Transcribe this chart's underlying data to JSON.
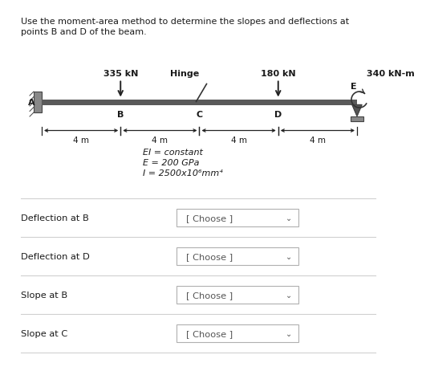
{
  "title_line1": "Use the moment-area method to determine the slopes and deflections at",
  "title_line2": "points B and D of the beam.",
  "force1_label": "335 kN",
  "force2_label": "180 kN",
  "moment_label": "340 kN-m",
  "hinge_label": "Hinge",
  "ei_line1": "EI = constant",
  "ei_line2": "E = 200 GPa",
  "ei_line3": "I = 2500x10⁶mm⁴",
  "spacing_label": "4 m",
  "rows": [
    {
      "label": "Deflection at B"
    },
    {
      "label": "Deflection at D"
    },
    {
      "label": "Slope at B"
    },
    {
      "label": "Slope at C"
    }
  ],
  "bg_color": "#ffffff",
  "text_color": "#1a1a1a",
  "beam_fill": "#5a5a5a",
  "divider_color": "#d0d0d0",
  "dropdown_border": "#b0b0b0",
  "dropdown_text": "#555555",
  "wall_color": "#888888",
  "support_color": "#888888"
}
